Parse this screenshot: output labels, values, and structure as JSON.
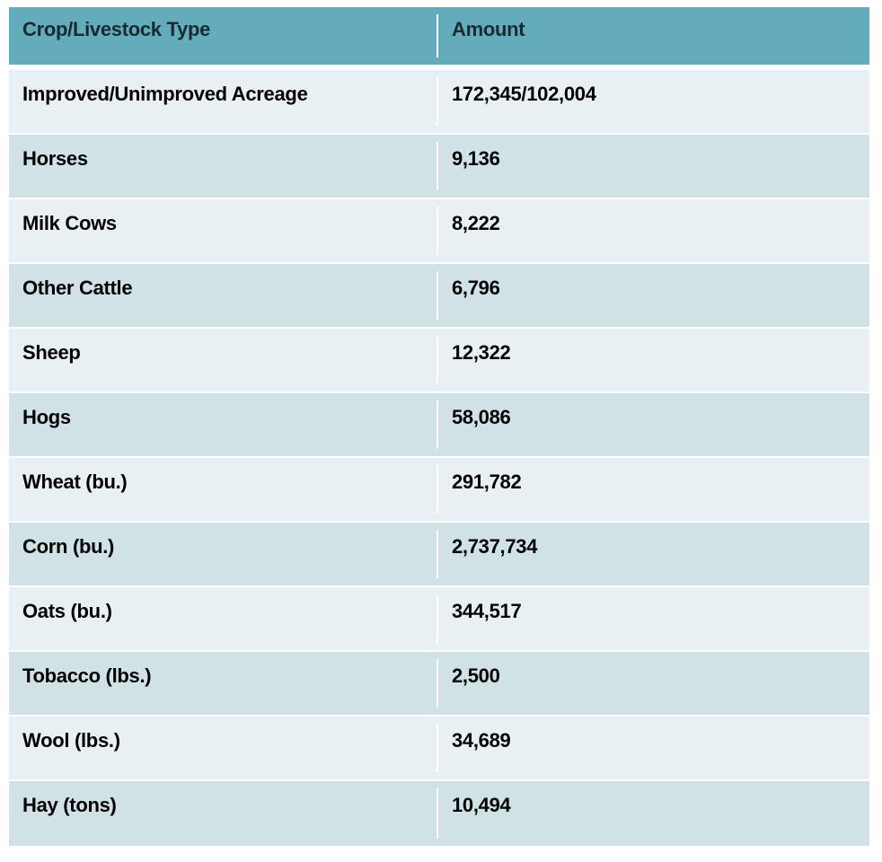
{
  "table": {
    "header": {
      "type_label": "Crop/Livestock Type",
      "amount_label": "Amount"
    },
    "rows": [
      {
        "type": "Improved/Unimproved Acreage",
        "amount": "172,345/102,004"
      },
      {
        "type": "Horses",
        "amount": "9,136"
      },
      {
        "type": "Milk Cows",
        "amount": "8,222"
      },
      {
        "type": "Other Cattle",
        "amount": "6,796"
      },
      {
        "type": "Sheep",
        "amount": "12,322"
      },
      {
        "type": "Hogs",
        "amount": "58,086"
      },
      {
        "type": "Wheat (bu.)",
        "amount": "291,782"
      },
      {
        "type": "Corn (bu.)",
        "amount": "2,737,734"
      },
      {
        "type": "Oats (bu.)",
        "amount": "344,517"
      },
      {
        "type": "Tobacco (lbs.)",
        "amount": "2,500"
      },
      {
        "type": "Wool (lbs.)",
        "amount": "34,689"
      },
      {
        "type": "Hay (tons)",
        "amount": "10,494"
      }
    ]
  },
  "colors": {
    "header_bg": "#62acbb",
    "row_dark": "#d1e2e7",
    "row_light": "#e8f0f3"
  }
}
